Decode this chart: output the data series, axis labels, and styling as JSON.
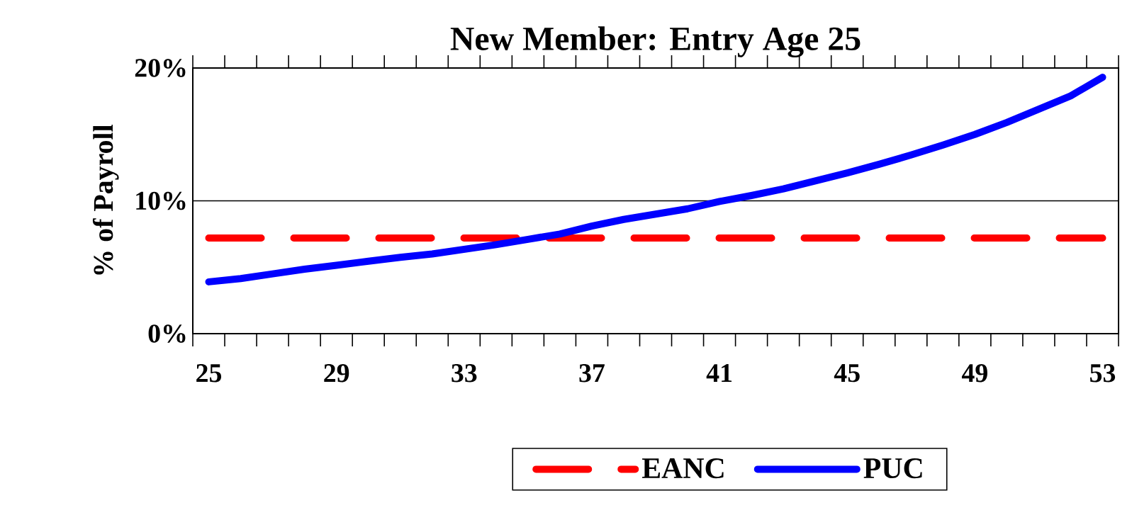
{
  "chart_data": {
    "type": "line",
    "title": "New Member: Entry Age 25",
    "ylabel": "% of Payroll",
    "categories": [
      "25",
      null,
      null,
      null,
      "29",
      null,
      null,
      null,
      "33",
      null,
      null,
      null,
      "37",
      null,
      null,
      null,
      "41",
      null,
      null,
      null,
      "45",
      null,
      null,
      null,
      "49",
      null,
      null,
      null,
      "53"
    ],
    "series": [
      {
        "name": "EANC",
        "color": "#ff0000",
        "line_style": "dashed",
        "values": [
          7.2,
          7.2,
          7.2,
          7.2,
          7.2,
          7.2,
          7.2,
          7.2,
          7.2,
          7.2,
          7.2,
          7.2,
          7.2,
          7.2,
          7.2,
          7.2,
          7.2,
          7.2,
          7.2,
          7.2,
          7.2,
          7.2,
          7.2,
          7.2,
          7.2,
          7.2,
          7.2,
          7.2,
          7.2
        ]
      },
      {
        "name": "PUC",
        "color": "#0000ff",
        "line_style": "solid",
        "values": [
          3.9,
          4.15,
          4.5,
          4.85,
          5.15,
          5.45,
          5.75,
          6.0,
          6.35,
          6.7,
          7.1,
          7.5,
          8.1,
          8.6,
          9.0,
          9.4,
          9.95,
          10.4,
          10.9,
          11.5,
          12.1,
          12.75,
          13.45,
          14.2,
          15.0,
          15.9,
          16.9,
          17.9,
          19.3
        ]
      }
    ],
    "ylim": [
      0,
      20
    ],
    "yticks": [
      {
        "value": 0,
        "label": "0%"
      },
      {
        "value": 10,
        "label": "10%"
      },
      {
        "value": 20,
        "label": "20%"
      }
    ],
    "grid": "y",
    "legend": "bottom"
  }
}
